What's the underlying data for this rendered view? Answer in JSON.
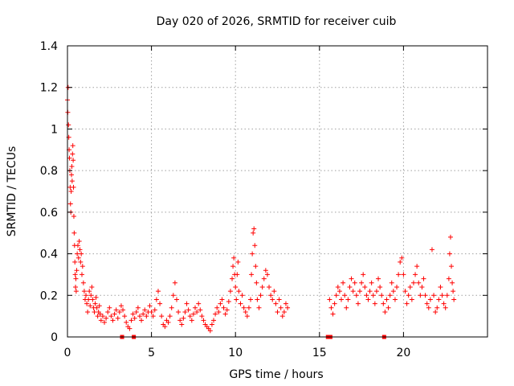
{
  "chart_data": {
    "type": "scatter",
    "title": "Day 020 of 2026, SRMTID for receiver cuib",
    "xlabel": "GPS time / hours",
    "ylabel": "SRMTID / TECUs",
    "xlim": [
      0,
      25
    ],
    "ylim": [
      0,
      1.4
    ],
    "xticks": [
      0,
      5,
      10,
      15,
      20
    ],
    "xtick_labels": [
      "0",
      "5",
      "10",
      "15",
      "20"
    ],
    "yticks": [
      0,
      0.2,
      0.4,
      0.6,
      0.8,
      1.0,
      1.2,
      1.4
    ],
    "ytick_labels": [
      "0",
      "0.2",
      "0.4",
      "0.6",
      "0.8",
      "1",
      "1.2",
      "1.4"
    ],
    "grid": true,
    "marker": "+",
    "marker_color": "#ff0000",
    "series": [
      {
        "name": "SRMTID",
        "points": [
          [
            0.0,
            1.14
          ],
          [
            0.02,
            1.08
          ],
          [
            0.04,
            1.2
          ],
          [
            0.06,
            1.02
          ],
          [
            0.08,
            0.96
          ],
          [
            0.1,
            0.9
          ],
          [
            0.12,
            0.86
          ],
          [
            0.14,
            0.8
          ],
          [
            0.16,
            0.72
          ],
          [
            0.18,
            0.64
          ],
          [
            0.2,
            0.6
          ],
          [
            0.22,
            0.7
          ],
          [
            0.24,
            0.78
          ],
          [
            0.26,
            0.82
          ],
          [
            0.28,
            0.75
          ],
          [
            0.3,
            0.88
          ],
          [
            0.32,
            0.92
          ],
          [
            0.34,
            0.85
          ],
          [
            0.36,
            0.72
          ],
          [
            0.38,
            0.58
          ],
          [
            0.4,
            0.5
          ],
          [
            0.42,
            0.44
          ],
          [
            0.44,
            0.36
          ],
          [
            0.46,
            0.3
          ],
          [
            0.48,
            0.24
          ],
          [
            0.5,
            0.28
          ],
          [
            0.52,
            0.22
          ],
          [
            0.55,
            0.32
          ],
          [
            0.58,
            0.4
          ],
          [
            0.62,
            0.44
          ],
          [
            0.66,
            0.38
          ],
          [
            0.7,
            0.46
          ],
          [
            0.74,
            0.42
          ],
          [
            0.78,
            0.36
          ],
          [
            0.82,
            0.4
          ],
          [
            0.86,
            0.3
          ],
          [
            0.9,
            0.34
          ],
          [
            0.95,
            0.26
          ],
          [
            1.0,
            0.22
          ],
          [
            1.05,
            0.18
          ],
          [
            1.1,
            0.2
          ],
          [
            1.15,
            0.16
          ],
          [
            1.2,
            0.12
          ],
          [
            1.25,
            0.18
          ],
          [
            1.3,
            0.22
          ],
          [
            1.35,
            0.15
          ],
          [
            1.4,
            0.2
          ],
          [
            1.45,
            0.24
          ],
          [
            1.5,
            0.18
          ],
          [
            1.55,
            0.14
          ],
          [
            1.6,
            0.12
          ],
          [
            1.65,
            0.16
          ],
          [
            1.7,
            0.19
          ],
          [
            1.75,
            0.14
          ],
          [
            1.8,
            0.1
          ],
          [
            1.85,
            0.12
          ],
          [
            1.9,
            0.15
          ],
          [
            1.95,
            0.11
          ],
          [
            2.0,
            0.08
          ],
          [
            2.1,
            0.1
          ],
          [
            2.2,
            0.07
          ],
          [
            2.3,
            0.09
          ],
          [
            2.4,
            0.12
          ],
          [
            2.5,
            0.14
          ],
          [
            2.6,
            0.1
          ],
          [
            2.7,
            0.08
          ],
          [
            2.8,
            0.11
          ],
          [
            2.9,
            0.13
          ],
          [
            3.0,
            0.09
          ],
          [
            3.1,
            0.12
          ],
          [
            3.2,
            0.15
          ],
          [
            3.3,
            0.13
          ],
          [
            3.4,
            0.1
          ],
          [
            3.5,
            0.07
          ],
          [
            3.6,
            0.05
          ],
          [
            3.7,
            0.04
          ],
          [
            3.8,
            0.08
          ],
          [
            3.9,
            0.11
          ],
          [
            4.0,
            0.09
          ],
          [
            4.1,
            0.12
          ],
          [
            4.2,
            0.14
          ],
          [
            4.3,
            0.1
          ],
          [
            4.4,
            0.08
          ],
          [
            4.5,
            0.11
          ],
          [
            4.6,
            0.13
          ],
          [
            4.7,
            0.1
          ],
          [
            4.8,
            0.12
          ],
          [
            4.9,
            0.15
          ],
          [
            5.0,
            0.12
          ],
          [
            5.1,
            0.1
          ],
          [
            5.2,
            0.13
          ],
          [
            5.3,
            0.18
          ],
          [
            5.4,
            0.22
          ],
          [
            5.5,
            0.16
          ],
          [
            5.6,
            0.1
          ],
          [
            5.7,
            0.06
          ],
          [
            5.8,
            0.05
          ],
          [
            5.9,
            0.08
          ],
          [
            6.0,
            0.07
          ],
          [
            6.1,
            0.1
          ],
          [
            6.2,
            0.14
          ],
          [
            6.3,
            0.2
          ],
          [
            6.4,
            0.26
          ],
          [
            6.5,
            0.18
          ],
          [
            6.6,
            0.12
          ],
          [
            6.7,
            0.08
          ],
          [
            6.8,
            0.06
          ],
          [
            6.9,
            0.09
          ],
          [
            7.0,
            0.12
          ],
          [
            7.1,
            0.16
          ],
          [
            7.2,
            0.13
          ],
          [
            7.3,
            0.1
          ],
          [
            7.4,
            0.08
          ],
          [
            7.5,
            0.11
          ],
          [
            7.6,
            0.14
          ],
          [
            7.7,
            0.12
          ],
          [
            7.8,
            0.16
          ],
          [
            7.9,
            0.13
          ],
          [
            8.0,
            0.1
          ],
          [
            8.1,
            0.08
          ],
          [
            8.2,
            0.06
          ],
          [
            8.3,
            0.05
          ],
          [
            8.4,
            0.04
          ],
          [
            8.5,
            0.03
          ],
          [
            8.6,
            0.06
          ],
          [
            8.7,
            0.08
          ],
          [
            8.8,
            0.11
          ],
          [
            8.9,
            0.14
          ],
          [
            9.0,
            0.12
          ],
          [
            9.1,
            0.16
          ],
          [
            9.2,
            0.18
          ],
          [
            9.3,
            0.14
          ],
          [
            9.4,
            0.11
          ],
          [
            9.5,
            0.13
          ],
          [
            9.6,
            0.17
          ],
          [
            9.7,
            0.22
          ],
          [
            9.8,
            0.28
          ],
          [
            9.85,
            0.34
          ],
          [
            9.9,
            0.38
          ],
          [
            9.95,
            0.3
          ],
          [
            10.0,
            0.24
          ],
          [
            10.05,
            0.18
          ],
          [
            10.1,
            0.3
          ],
          [
            10.15,
            0.36
          ],
          [
            10.2,
            0.22
          ],
          [
            10.3,
            0.16
          ],
          [
            10.4,
            0.2
          ],
          [
            10.5,
            0.14
          ],
          [
            10.6,
            0.12
          ],
          [
            10.7,
            0.1
          ],
          [
            10.8,
            0.14
          ],
          [
            10.9,
            0.18
          ],
          [
            10.95,
            0.3
          ],
          [
            11.0,
            0.4
          ],
          [
            11.05,
            0.5
          ],
          [
            11.1,
            0.52
          ],
          [
            11.15,
            0.44
          ],
          [
            11.2,
            0.34
          ],
          [
            11.25,
            0.26
          ],
          [
            11.3,
            0.18
          ],
          [
            11.4,
            0.14
          ],
          [
            11.5,
            0.2
          ],
          [
            11.6,
            0.24
          ],
          [
            11.7,
            0.28
          ],
          [
            11.8,
            0.32
          ],
          [
            11.9,
            0.3
          ],
          [
            12.0,
            0.24
          ],
          [
            12.1,
            0.2
          ],
          [
            12.2,
            0.18
          ],
          [
            12.3,
            0.22
          ],
          [
            12.4,
            0.16
          ],
          [
            12.5,
            0.12
          ],
          [
            12.6,
            0.18
          ],
          [
            12.7,
            0.14
          ],
          [
            12.8,
            0.1
          ],
          [
            12.9,
            0.12
          ],
          [
            13.0,
            0.16
          ],
          [
            13.1,
            0.14
          ],
          [
            15.6,
            0.18
          ],
          [
            15.7,
            0.14
          ],
          [
            15.8,
            0.11
          ],
          [
            15.9,
            0.16
          ],
          [
            16.0,
            0.2
          ],
          [
            16.1,
            0.24
          ],
          [
            16.2,
            0.22
          ],
          [
            16.3,
            0.18
          ],
          [
            16.4,
            0.26
          ],
          [
            16.5,
            0.2
          ],
          [
            16.6,
            0.14
          ],
          [
            16.7,
            0.18
          ],
          [
            16.8,
            0.24
          ],
          [
            16.9,
            0.28
          ],
          [
            17.0,
            0.22
          ],
          [
            17.1,
            0.26
          ],
          [
            17.2,
            0.2
          ],
          [
            17.3,
            0.16
          ],
          [
            17.4,
            0.22
          ],
          [
            17.5,
            0.26
          ],
          [
            17.6,
            0.3
          ],
          [
            17.7,
            0.24
          ],
          [
            17.8,
            0.2
          ],
          [
            17.9,
            0.18
          ],
          [
            18.0,
            0.22
          ],
          [
            18.1,
            0.26
          ],
          [
            18.2,
            0.2
          ],
          [
            18.3,
            0.16
          ],
          [
            18.4,
            0.22
          ],
          [
            18.5,
            0.28
          ],
          [
            18.6,
            0.24
          ],
          [
            18.7,
            0.2
          ],
          [
            18.8,
            0.16
          ],
          [
            18.9,
            0.12
          ],
          [
            19.0,
            0.18
          ],
          [
            19.1,
            0.14
          ],
          [
            19.2,
            0.2
          ],
          [
            19.3,
            0.26
          ],
          [
            19.4,
            0.22
          ],
          [
            19.5,
            0.18
          ],
          [
            19.6,
            0.24
          ],
          [
            19.7,
            0.3
          ],
          [
            19.8,
            0.36
          ],
          [
            19.9,
            0.38
          ],
          [
            20.0,
            0.3
          ],
          [
            20.1,
            0.22
          ],
          [
            20.2,
            0.16
          ],
          [
            20.3,
            0.2
          ],
          [
            20.4,
            0.24
          ],
          [
            20.5,
            0.18
          ],
          [
            20.6,
            0.26
          ],
          [
            20.7,
            0.3
          ],
          [
            20.8,
            0.34
          ],
          [
            20.9,
            0.26
          ],
          [
            21.0,
            0.2
          ],
          [
            21.1,
            0.24
          ],
          [
            21.2,
            0.28
          ],
          [
            21.3,
            0.2
          ],
          [
            21.4,
            0.16
          ],
          [
            21.5,
            0.14
          ],
          [
            21.6,
            0.18
          ],
          [
            21.7,
            0.42
          ],
          [
            21.8,
            0.2
          ],
          [
            21.9,
            0.12
          ],
          [
            22.0,
            0.14
          ],
          [
            22.1,
            0.18
          ],
          [
            22.2,
            0.24
          ],
          [
            22.3,
            0.2
          ],
          [
            22.4,
            0.16
          ],
          [
            22.5,
            0.14
          ],
          [
            22.6,
            0.2
          ],
          [
            22.7,
            0.28
          ],
          [
            22.75,
            0.4
          ],
          [
            22.8,
            0.48
          ],
          [
            22.85,
            0.34
          ],
          [
            22.9,
            0.26
          ],
          [
            22.95,
            0.22
          ],
          [
            23.0,
            0.18
          ]
        ]
      }
    ],
    "markers_at_zero": [
      3.25,
      3.95,
      15.5,
      15.65,
      18.85
    ]
  }
}
